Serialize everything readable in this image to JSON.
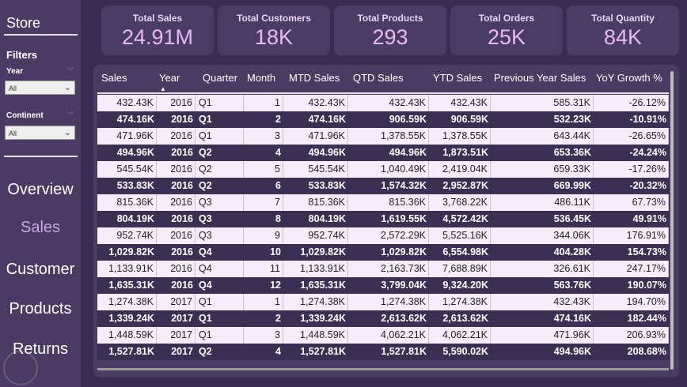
{
  "sidebar": {
    "title": "Store",
    "filters_label": "Filters",
    "filters": [
      {
        "label": "Year",
        "value": "All"
      },
      {
        "label": "Continent",
        "value": "All"
      }
    ],
    "nav": [
      {
        "label": "Overview",
        "active": false
      },
      {
        "label": "Sales",
        "active": true
      },
      {
        "label": "Customer",
        "active": false
      },
      {
        "label": "Products",
        "active": false
      },
      {
        "label": "Returns",
        "active": false
      }
    ]
  },
  "kpis": [
    {
      "title": "Total Sales",
      "value": "24.91M"
    },
    {
      "title": "Total Customers",
      "value": "18K"
    },
    {
      "title": "Total Products",
      "value": "293"
    },
    {
      "title": "Total Orders",
      "value": "25K"
    },
    {
      "title": "Total Quantity",
      "value": "84K"
    }
  ],
  "table": {
    "sorted_column": "Year",
    "columns": [
      "Sales",
      "Year",
      "Quarter",
      "Month",
      "MTD Sales",
      "QTD Sales",
      "YTD Sales",
      "Previous Year Sales",
      "YoY Growth %"
    ],
    "rows": [
      [
        "432.43K",
        "2016",
        "Q1",
        "1",
        "432.43K",
        "432.43K",
        "432.43K",
        "585.31K",
        "-26.12%"
      ],
      [
        "474.16K",
        "2016",
        "Q1",
        "2",
        "474.16K",
        "906.59K",
        "906.59K",
        "532.23K",
        "-10.91%"
      ],
      [
        "471.96K",
        "2016",
        "Q1",
        "3",
        "471.96K",
        "1,378.55K",
        "1,378.55K",
        "643.44K",
        "-26.65%"
      ],
      [
        "494.96K",
        "2016",
        "Q2",
        "4",
        "494.96K",
        "494.96K",
        "1,873.51K",
        "653.36K",
        "-24.24%"
      ],
      [
        "545.54K",
        "2016",
        "Q2",
        "5",
        "545.54K",
        "1,040.49K",
        "2,419.04K",
        "659.33K",
        "-17.26%"
      ],
      [
        "533.83K",
        "2016",
        "Q2",
        "6",
        "533.83K",
        "1,574.32K",
        "2,952.87K",
        "669.99K",
        "-20.32%"
      ],
      [
        "815.36K",
        "2016",
        "Q3",
        "7",
        "815.36K",
        "815.36K",
        "3,768.22K",
        "486.11K",
        "67.73%"
      ],
      [
        "804.19K",
        "2016",
        "Q3",
        "8",
        "804.19K",
        "1,619.55K",
        "4,572.42K",
        "536.45K",
        "49.91%"
      ],
      [
        "952.74K",
        "2016",
        "Q3",
        "9",
        "952.74K",
        "2,572.29K",
        "5,525.16K",
        "344.06K",
        "176.91%"
      ],
      [
        "1,029.82K",
        "2016",
        "Q4",
        "10",
        "1,029.82K",
        "1,029.82K",
        "6,554.98K",
        "404.28K",
        "154.73%"
      ],
      [
        "1,133.91K",
        "2016",
        "Q4",
        "11",
        "1,133.91K",
        "2,163.73K",
        "7,688.89K",
        "326.61K",
        "247.17%"
      ],
      [
        "1,635.31K",
        "2016",
        "Q4",
        "12",
        "1,635.31K",
        "3,799.04K",
        "9,324.20K",
        "563.76K",
        "190.07%"
      ],
      [
        "1,274.38K",
        "2017",
        "Q1",
        "1",
        "1,274.38K",
        "1,274.38K",
        "1,274.38K",
        "432.43K",
        "194.70%"
      ],
      [
        "1,339.24K",
        "2017",
        "Q1",
        "2",
        "1,339.24K",
        "2,613.62K",
        "2,613.62K",
        "474.16K",
        "182.44%"
      ],
      [
        "1,448.59K",
        "2017",
        "Q1",
        "3",
        "1,448.59K",
        "4,062.21K",
        "4,062.21K",
        "471.96K",
        "206.93%"
      ],
      [
        "1,527.81K",
        "2017",
        "Q2",
        "4",
        "1,527.81K",
        "1,527.81K",
        "5,590.02K",
        "494.96K",
        "208.68%"
      ]
    ]
  },
  "colors": {
    "background": "#3a2d52",
    "sidebar": "#4a3a64",
    "kpi_value": "#e9b8f5",
    "row_light": "#f6ecfa",
    "row_dark": "#3c2f54"
  }
}
